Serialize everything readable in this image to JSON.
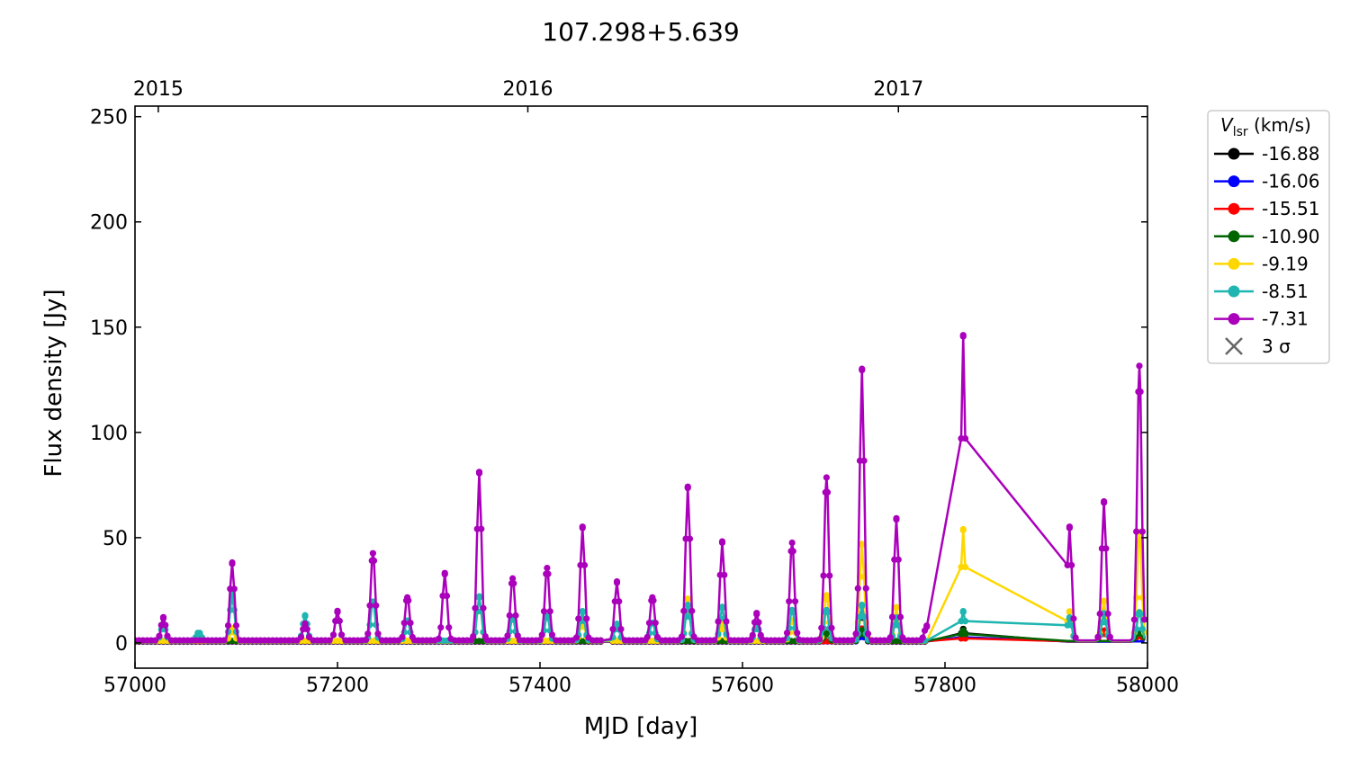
{
  "chart_data": {
    "type": "line",
    "title": "107.298+5.639",
    "xlabel": "MJD [day]",
    "ylabel": "Flux density [Jy]",
    "xlim": [
      57000,
      58000
    ],
    "ylim": [
      -12,
      255
    ],
    "xticks": [
      57000,
      57200,
      57400,
      57600,
      57800,
      58000
    ],
    "yticks": [
      0,
      50,
      100,
      150,
      200,
      250
    ],
    "top_axis": {
      "ticks": [
        {
          "label": "2015",
          "mjd": 57023
        },
        {
          "label": "2016",
          "mjd": 57388
        },
        {
          "label": "2017",
          "mjd": 57754
        }
      ]
    },
    "legend": {
      "title_main": "V",
      "title_sub": "lsr",
      "title_unit": " (km/s)",
      "placement": "outside-right",
      "sigma_label": "3 σ"
    },
    "observed_segments": [
      [
        57000,
        57300
      ],
      [
        57302,
        57462
      ],
      [
        57470,
        57783
      ],
      [
        57816,
        57820
      ],
      [
        57921,
        57998
      ]
    ],
    "baseline_jy": 1,
    "series": [
      {
        "name": "-16.88",
        "color": "#000000",
        "flares": [
          [
            57718,
            17
          ],
          [
            57818,
            6
          ],
          [
            57683,
            4
          ],
          [
            57992,
            5
          ]
        ]
      },
      {
        "name": "-16.06",
        "color": "#0000ff",
        "flares": [
          [
            57818,
            3
          ],
          [
            57718,
            3
          ]
        ]
      },
      {
        "name": "-15.51",
        "color": "#ff0000",
        "flares": [
          [
            57818,
            2
          ],
          [
            57718,
            6
          ],
          [
            57957,
            5
          ],
          [
            57992,
            5
          ]
        ]
      },
      {
        "name": "-10.90",
        "color": "#006400",
        "flares": [
          [
            57818,
            5
          ],
          [
            57718,
            5
          ],
          [
            57683,
            4
          ],
          [
            57992,
            4
          ]
        ]
      },
      {
        "name": "-9.19",
        "color": "#ffd700",
        "flares": [
          [
            57096,
            6
          ],
          [
            57340,
            21
          ],
          [
            57442,
            10
          ],
          [
            57546,
            20
          ],
          [
            57580,
            8
          ],
          [
            57649,
            10
          ],
          [
            57683,
            22
          ],
          [
            57718,
            46
          ],
          [
            57752,
            16
          ],
          [
            57818,
            53
          ],
          [
            57923,
            14
          ],
          [
            57957,
            19
          ],
          [
            57992,
            52
          ]
        ]
      },
      {
        "name": "-8.51",
        "color": "#1fb5b0",
        "flares": [
          [
            57028,
            8
          ],
          [
            57063,
            4
          ],
          [
            57096,
            22
          ],
          [
            57168,
            12
          ],
          [
            57200,
            14
          ],
          [
            57235,
            19
          ],
          [
            57269,
            10
          ],
          [
            57340,
            21
          ],
          [
            57373,
            11
          ],
          [
            57407,
            12
          ],
          [
            57442,
            14
          ],
          [
            57476,
            8
          ],
          [
            57511,
            9
          ],
          [
            57546,
            17
          ],
          [
            57580,
            16
          ],
          [
            57614,
            8
          ],
          [
            57649,
            15
          ],
          [
            57683,
            15
          ],
          [
            57718,
            17
          ],
          [
            57752,
            11
          ],
          [
            57818,
            14
          ],
          [
            57923,
            11
          ],
          [
            57957,
            13
          ],
          [
            57992,
            14
          ]
        ]
      },
      {
        "name": "-7.31",
        "color": "#aa00bb",
        "flares": [
          [
            57028,
            11
          ],
          [
            57096,
            37
          ],
          [
            57168,
            8
          ],
          [
            57200,
            14
          ],
          [
            57235,
            42
          ],
          [
            57269,
            21
          ],
          [
            57306,
            32
          ],
          [
            57340,
            80
          ],
          [
            57373,
            30
          ],
          [
            57407,
            35
          ],
          [
            57442,
            54
          ],
          [
            57476,
            28
          ],
          [
            57511,
            21
          ],
          [
            57546,
            73
          ],
          [
            57580,
            47
          ],
          [
            57614,
            13
          ],
          [
            57649,
            47
          ],
          [
            57683,
            78
          ],
          [
            57718,
            129
          ],
          [
            57752,
            58
          ],
          [
            57782,
            7
          ],
          [
            57818,
            145
          ],
          [
            57923,
            54
          ],
          [
            57957,
            66
          ],
          [
            57992,
            131
          ]
        ]
      }
    ]
  }
}
